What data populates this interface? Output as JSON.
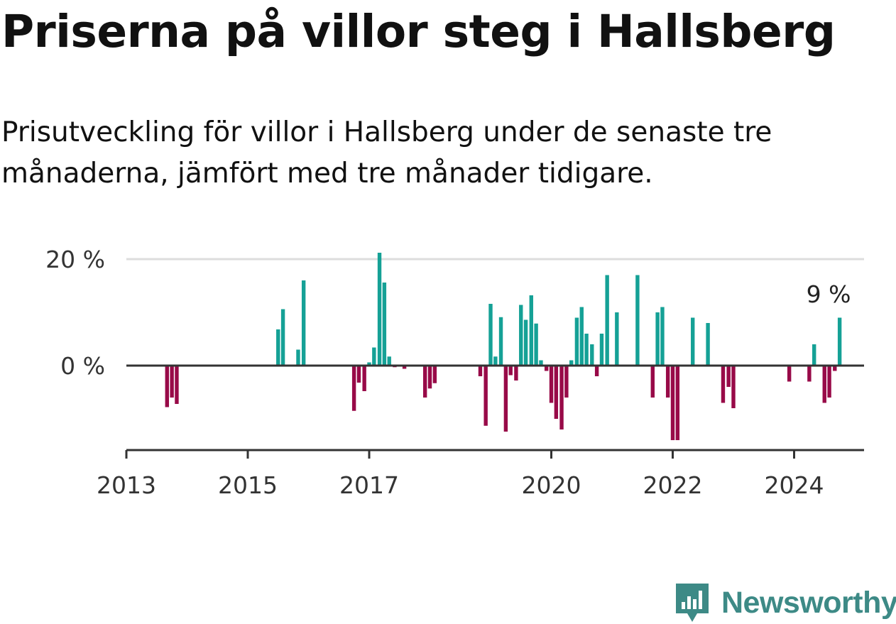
{
  "header": {
    "title": "Priserna på villor steg i Hallsberg",
    "subtitle": "Prisutveckling för villor i Hallsberg under de senaste tre månaderna, jämfört med tre månader tidigare."
  },
  "brand": {
    "name": "Newsworthy"
  },
  "colors": {
    "positive": "#15a196",
    "negative": "#980a48",
    "grid": "#dddddd",
    "axis": "#333333",
    "brand": "#3d8a86"
  },
  "chart_data": {
    "type": "bar",
    "ylim": [
      -14.5,
      21
    ],
    "yticks": [
      {
        "value": 0,
        "label": "0 %"
      },
      {
        "value": 20,
        "label": "20 %"
      }
    ],
    "xticks": [
      {
        "value": 2013.0,
        "label": "2013"
      },
      {
        "value": 2015.0,
        "label": "2015"
      },
      {
        "value": 2017.0,
        "label": "2017"
      },
      {
        "value": 2020.0,
        "label": "2020"
      },
      {
        "value": 2022.0,
        "label": "2022"
      },
      {
        "value": 2024.0,
        "label": "2024"
      }
    ],
    "xlim": [
      2013.0,
      2025.18
    ],
    "annotation": {
      "label": "9 %",
      "x": 2024.58,
      "y": 9
    },
    "series": [
      {
        "points": [
          {
            "x": 2013.67,
            "y": -7.8
          },
          {
            "x": 2013.75,
            "y": -6.0
          },
          {
            "x": 2013.83,
            "y": -7.2
          },
          {
            "x": 2015.5,
            "y": 6.8
          },
          {
            "x": 2015.58,
            "y": 10.6
          },
          {
            "x": 2015.83,
            "y": 3.0
          },
          {
            "x": 2015.92,
            "y": 16.0
          },
          {
            "x": 2016.75,
            "y": -8.5
          },
          {
            "x": 2016.83,
            "y": -3.2
          },
          {
            "x": 2016.92,
            "y": -4.8
          },
          {
            "x": 2017.0,
            "y": 0.6
          },
          {
            "x": 2017.08,
            "y": 3.4
          },
          {
            "x": 2017.17,
            "y": 21.2
          },
          {
            "x": 2017.25,
            "y": 15.6
          },
          {
            "x": 2017.33,
            "y": 1.7
          },
          {
            "x": 2017.42,
            "y": -0.3
          },
          {
            "x": 2017.58,
            "y": -0.6
          },
          {
            "x": 2017.92,
            "y": -6.0
          },
          {
            "x": 2018.0,
            "y": -4.3
          },
          {
            "x": 2018.08,
            "y": -3.3
          },
          {
            "x": 2018.83,
            "y": -2.0
          },
          {
            "x": 2018.92,
            "y": -11.3
          },
          {
            "x": 2019.0,
            "y": 11.6
          },
          {
            "x": 2019.08,
            "y": 1.7
          },
          {
            "x": 2019.17,
            "y": 9.1
          },
          {
            "x": 2019.25,
            "y": -12.4
          },
          {
            "x": 2019.33,
            "y": -1.8
          },
          {
            "x": 2019.42,
            "y": -2.8
          },
          {
            "x": 2019.5,
            "y": 11.4
          },
          {
            "x": 2019.58,
            "y": 8.6
          },
          {
            "x": 2019.67,
            "y": 13.2
          },
          {
            "x": 2019.75,
            "y": 7.9
          },
          {
            "x": 2019.83,
            "y": 1.0
          },
          {
            "x": 2019.92,
            "y": -1.0
          },
          {
            "x": 2020.0,
            "y": -7.0
          },
          {
            "x": 2020.08,
            "y": -10.0
          },
          {
            "x": 2020.17,
            "y": -12.0
          },
          {
            "x": 2020.25,
            "y": -6.0
          },
          {
            "x": 2020.33,
            "y": 1.0
          },
          {
            "x": 2020.42,
            "y": 9.0
          },
          {
            "x": 2020.5,
            "y": 11.0
          },
          {
            "x": 2020.58,
            "y": 6.0
          },
          {
            "x": 2020.67,
            "y": 4.0
          },
          {
            "x": 2020.75,
            "y": -2.0
          },
          {
            "x": 2020.83,
            "y": 6.0
          },
          {
            "x": 2020.92,
            "y": 17.0
          },
          {
            "x": 2021.08,
            "y": 10.0
          },
          {
            "x": 2021.42,
            "y": 17.0
          },
          {
            "x": 2021.67,
            "y": -6.0
          },
          {
            "x": 2021.75,
            "y": 10.0
          },
          {
            "x": 2021.83,
            "y": 11.0
          },
          {
            "x": 2021.92,
            "y": -6.0
          },
          {
            "x": 2022.0,
            "y": -14.0
          },
          {
            "x": 2022.08,
            "y": -14.0
          },
          {
            "x": 2022.17,
            "y": -0.2
          },
          {
            "x": 2022.33,
            "y": 9.0
          },
          {
            "x": 2022.58,
            "y": 8.0
          },
          {
            "x": 2022.83,
            "y": -7.0
          },
          {
            "x": 2022.92,
            "y": -4.0
          },
          {
            "x": 2023.0,
            "y": -8.0
          },
          {
            "x": 2023.92,
            "y": -3.0
          },
          {
            "x": 2024.25,
            "y": -3.0
          },
          {
            "x": 2024.33,
            "y": 4.0
          },
          {
            "x": 2024.5,
            "y": -7.0
          },
          {
            "x": 2024.58,
            "y": -6.0
          },
          {
            "x": 2024.67,
            "y": -1.0
          },
          {
            "x": 2024.75,
            "y": 9.0
          }
        ]
      }
    ]
  }
}
